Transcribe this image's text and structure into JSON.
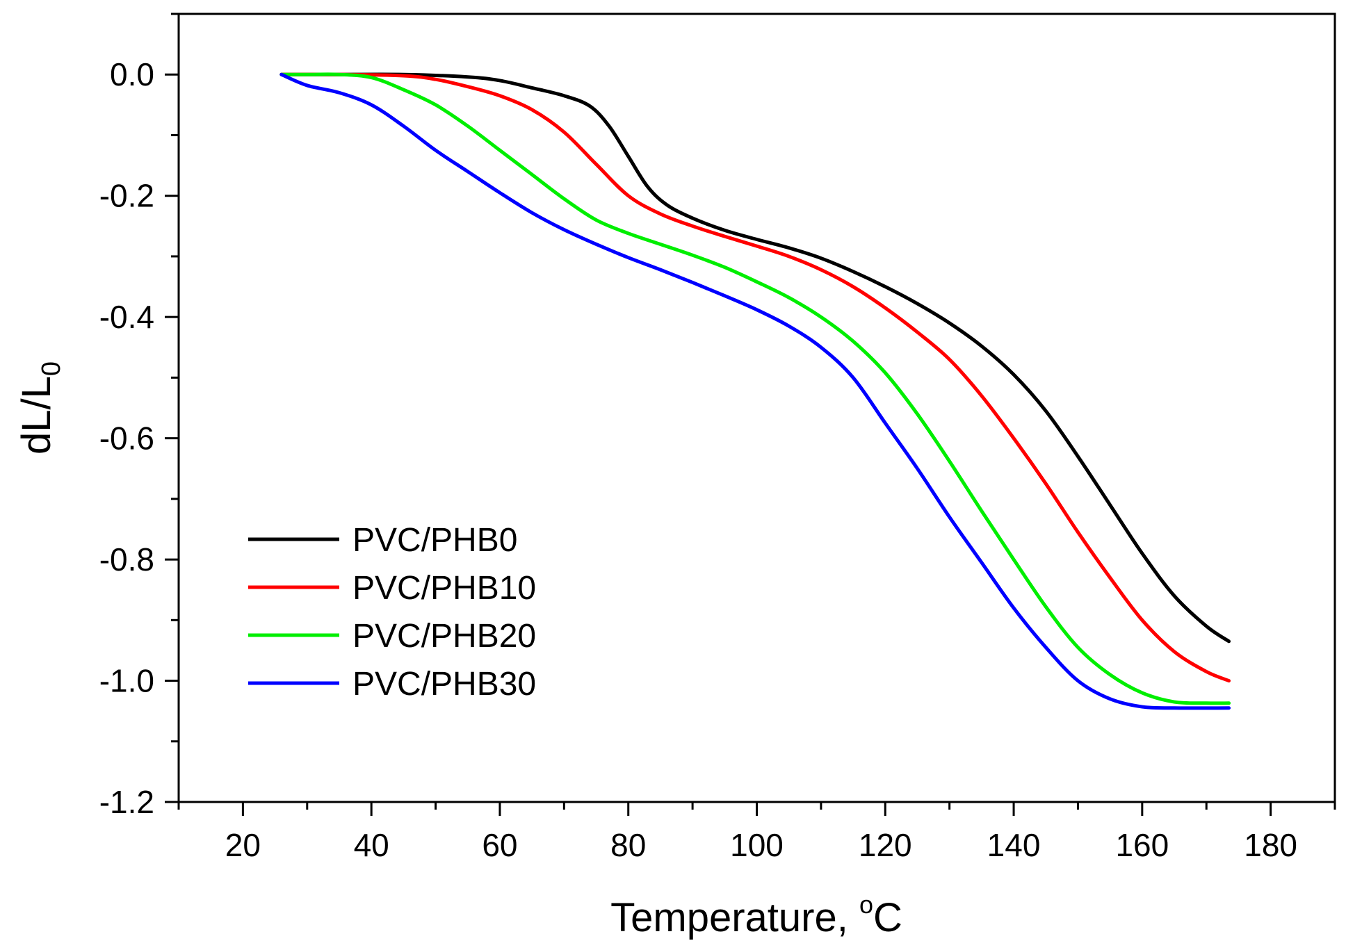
{
  "chart_data": {
    "type": "line",
    "title": "",
    "xlabel": "Temperature, ",
    "xlabel_unit_superscript": "o",
    "xlabel_unit": "C",
    "ylabel_main": "dL/L",
    "ylabel_subscript": "0",
    "xlim": [
      10,
      190
    ],
    "ylim": [
      -1.2,
      0.1
    ],
    "x_ticks": [
      20,
      40,
      60,
      80,
      100,
      120,
      140,
      160,
      180
    ],
    "x_tick_labels": [
      "20",
      "40",
      "60",
      "80",
      "100",
      "120",
      "140",
      "160",
      "180"
    ],
    "y_ticks": [
      0.0,
      -0.2,
      -0.4,
      -0.6,
      -0.8,
      -1.0,
      -1.2
    ],
    "y_tick_labels": [
      "0.0",
      "-0.2",
      "-0.4",
      "-0.6",
      "-0.8",
      "-1.0",
      "-1.2"
    ],
    "x_minor_step": 10,
    "y_minor_step": 0.1,
    "grid": false,
    "legend_position": "bottom-left",
    "series": [
      {
        "name": "PVC/PHB0",
        "color": "#000000",
        "points": [
          [
            26,
            0.0
          ],
          [
            35,
            0.0
          ],
          [
            45,
            0.0
          ],
          [
            55,
            -0.004
          ],
          [
            60,
            -0.01
          ],
          [
            65,
            -0.022
          ],
          [
            70,
            -0.035
          ],
          [
            74,
            -0.052
          ],
          [
            77,
            -0.085
          ],
          [
            80,
            -0.135
          ],
          [
            83,
            -0.185
          ],
          [
            86,
            -0.215
          ],
          [
            90,
            -0.237
          ],
          [
            95,
            -0.257
          ],
          [
            100,
            -0.272
          ],
          [
            105,
            -0.286
          ],
          [
            110,
            -0.303
          ],
          [
            115,
            -0.325
          ],
          [
            120,
            -0.35
          ],
          [
            125,
            -0.378
          ],
          [
            130,
            -0.41
          ],
          [
            135,
            -0.448
          ],
          [
            140,
            -0.495
          ],
          [
            145,
            -0.555
          ],
          [
            150,
            -0.63
          ],
          [
            155,
            -0.71
          ],
          [
            160,
            -0.79
          ],
          [
            165,
            -0.86
          ],
          [
            170,
            -0.91
          ],
          [
            173.5,
            -0.935
          ]
        ]
      },
      {
        "name": "PVC/PHB10",
        "color": "#ff0000",
        "points": [
          [
            26,
            0.0
          ],
          [
            35,
            0.0
          ],
          [
            45,
            -0.002
          ],
          [
            50,
            -0.008
          ],
          [
            55,
            -0.02
          ],
          [
            60,
            -0.035
          ],
          [
            65,
            -0.058
          ],
          [
            70,
            -0.095
          ],
          [
            75,
            -0.148
          ],
          [
            80,
            -0.2
          ],
          [
            85,
            -0.23
          ],
          [
            90,
            -0.25
          ],
          [
            95,
            -0.267
          ],
          [
            100,
            -0.283
          ],
          [
            105,
            -0.3
          ],
          [
            110,
            -0.322
          ],
          [
            115,
            -0.35
          ],
          [
            120,
            -0.385
          ],
          [
            125,
            -0.425
          ],
          [
            130,
            -0.47
          ],
          [
            135,
            -0.53
          ],
          [
            140,
            -0.6
          ],
          [
            145,
            -0.675
          ],
          [
            150,
            -0.755
          ],
          [
            155,
            -0.83
          ],
          [
            160,
            -0.9
          ],
          [
            165,
            -0.952
          ],
          [
            170,
            -0.985
          ],
          [
            173.5,
            -1.0
          ]
        ]
      },
      {
        "name": "PVC/PHB20",
        "color": "#00ee00",
        "points": [
          [
            26,
            0.0
          ],
          [
            30,
            0.0
          ],
          [
            35,
            0.0
          ],
          [
            40,
            -0.005
          ],
          [
            45,
            -0.025
          ],
          [
            50,
            -0.05
          ],
          [
            55,
            -0.085
          ],
          [
            60,
            -0.125
          ],
          [
            65,
            -0.165
          ],
          [
            70,
            -0.205
          ],
          [
            75,
            -0.24
          ],
          [
            80,
            -0.262
          ],
          [
            85,
            -0.28
          ],
          [
            90,
            -0.298
          ],
          [
            95,
            -0.318
          ],
          [
            100,
            -0.342
          ],
          [
            105,
            -0.368
          ],
          [
            110,
            -0.4
          ],
          [
            115,
            -0.44
          ],
          [
            120,
            -0.492
          ],
          [
            125,
            -0.56
          ],
          [
            130,
            -0.638
          ],
          [
            135,
            -0.72
          ],
          [
            140,
            -0.8
          ],
          [
            145,
            -0.878
          ],
          [
            150,
            -0.945
          ],
          [
            155,
            -0.99
          ],
          [
            160,
            -1.02
          ],
          [
            165,
            -1.035
          ],
          [
            170,
            -1.037
          ],
          [
            173.5,
            -1.037
          ]
        ]
      },
      {
        "name": "PVC/PHB30",
        "color": "#0000ff",
        "points": [
          [
            26,
            0.0
          ],
          [
            30,
            -0.018
          ],
          [
            35,
            -0.03
          ],
          [
            40,
            -0.05
          ],
          [
            45,
            -0.085
          ],
          [
            50,
            -0.125
          ],
          [
            55,
            -0.16
          ],
          [
            60,
            -0.195
          ],
          [
            65,
            -0.228
          ],
          [
            70,
            -0.256
          ],
          [
            75,
            -0.28
          ],
          [
            80,
            -0.302
          ],
          [
            85,
            -0.322
          ],
          [
            90,
            -0.343
          ],
          [
            95,
            -0.365
          ],
          [
            100,
            -0.388
          ],
          [
            105,
            -0.415
          ],
          [
            110,
            -0.45
          ],
          [
            115,
            -0.5
          ],
          [
            120,
            -0.575
          ],
          [
            125,
            -0.65
          ],
          [
            130,
            -0.73
          ],
          [
            135,
            -0.805
          ],
          [
            140,
            -0.88
          ],
          [
            145,
            -0.945
          ],
          [
            150,
            -1.0
          ],
          [
            155,
            -1.03
          ],
          [
            160,
            -1.043
          ],
          [
            165,
            -1.045
          ],
          [
            173.5,
            -1.045
          ]
        ]
      }
    ]
  }
}
